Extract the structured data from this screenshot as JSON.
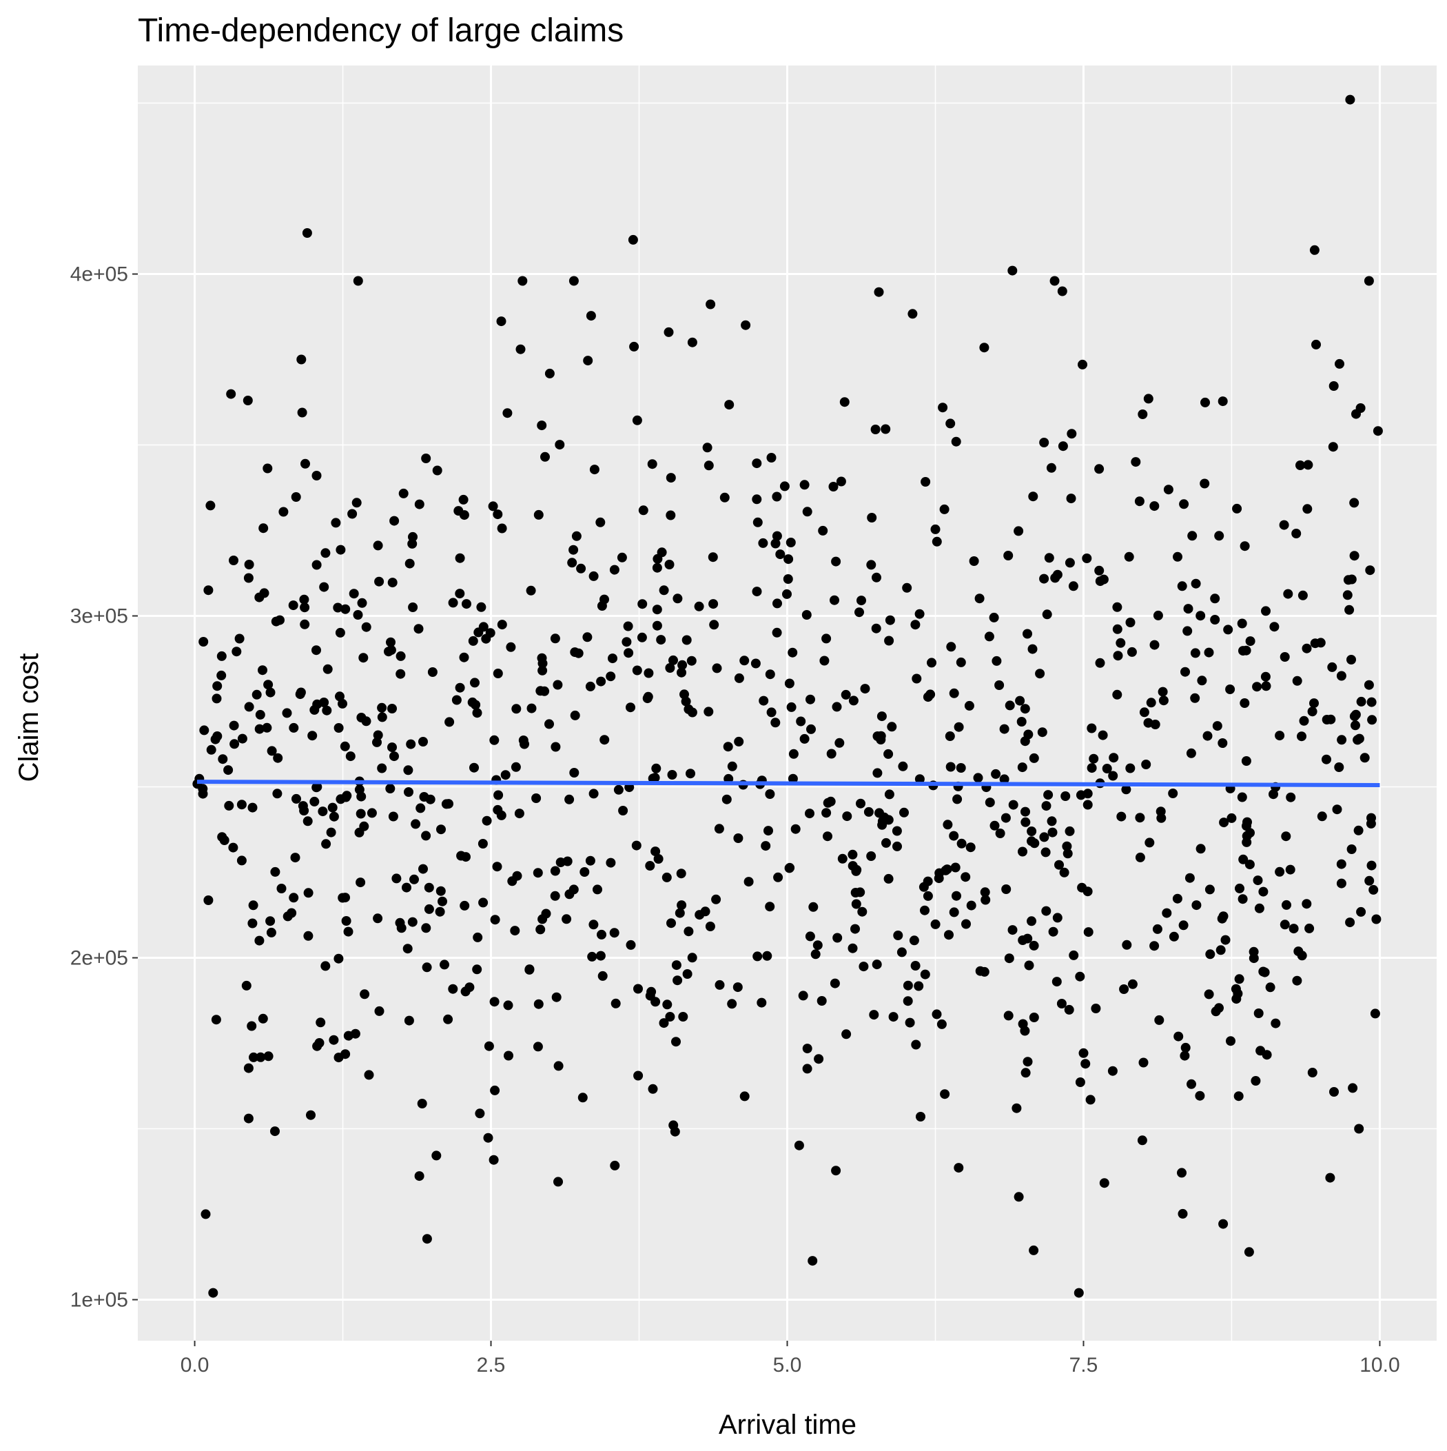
{
  "chart_data": {
    "type": "scatter",
    "title": "Time-dependency of large claims",
    "xlabel": "Arrival time",
    "ylabel": "Claim cost",
    "xlim": [
      -0.48,
      10.48
    ],
    "ylim": [
      88000,
      461000
    ],
    "x_ticks": [
      0,
      2.5,
      5,
      7.5,
      10
    ],
    "x_tick_labels": [
      "0.0",
      "2.5",
      "5.0",
      "7.5",
      "10.0"
    ],
    "y_ticks": [
      100000,
      200000,
      300000,
      400000
    ],
    "y_tick_labels": [
      "1e+05",
      "2e+05",
      "3e+05",
      "4e+05"
    ],
    "grid": true,
    "background": "#EBEBEB",
    "gridline_color": "#FFFFFF",
    "point_color": "#000000",
    "trend_color": "#3366FF",
    "trend_line": {
      "x": [
        0.02,
        10.0
      ],
      "y": [
        251500,
        250500
      ]
    },
    "points_note": "Approx. 1,000 points uniformly spread over x in [0, 10], y mostly between 100k and 410k, centered near 250k; a representative sample of readable outliers is listed below.",
    "notable_points": {
      "x": [
        0.95,
        3.7,
        6.9,
        9.45,
        9.75,
        3.2,
        0.9,
        4.2,
        4.0,
        2.75
      ],
      "y": [
        412000,
        410000,
        401000,
        407000,
        451000,
        398000,
        375000,
        380000,
        383000,
        378000
      ]
    },
    "seed": 42,
    "n_points": 1000
  }
}
